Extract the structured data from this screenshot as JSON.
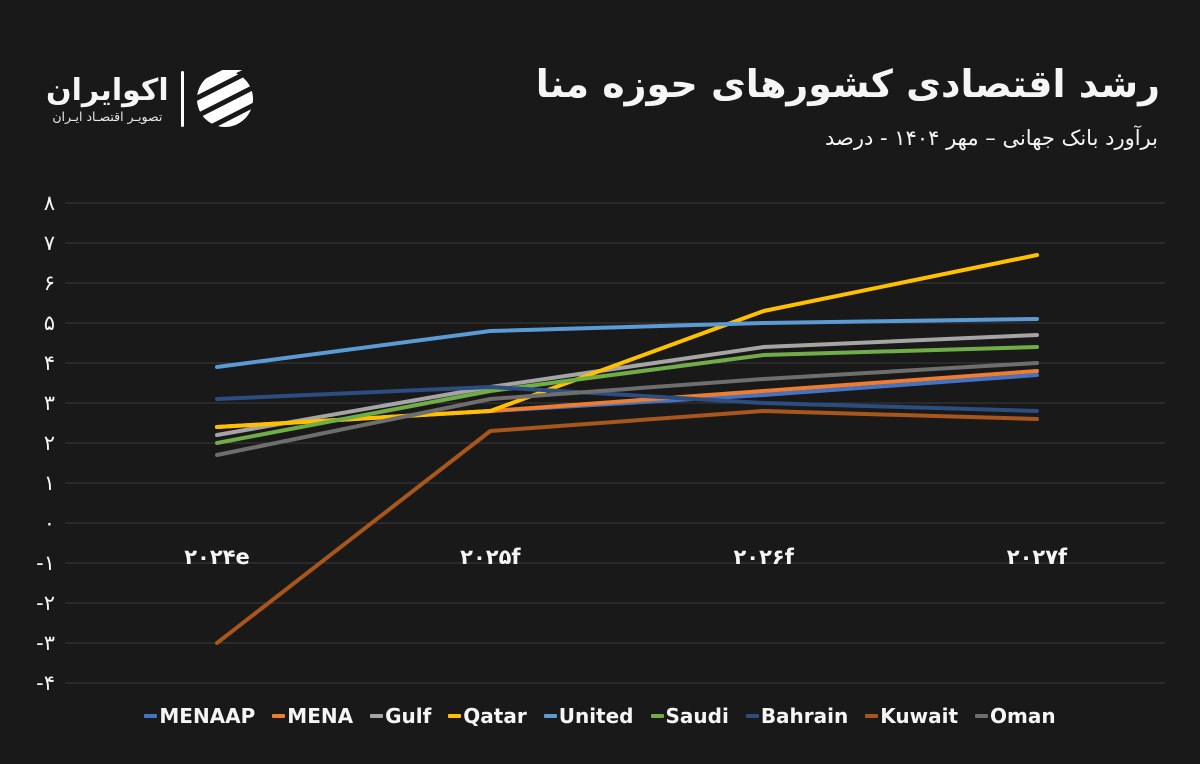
{
  "brand": {
    "name": "اکوایران",
    "tagline": "تصویـر اقتصـاد ایـران",
    "logo_icon": "ecoiran-striped-globe"
  },
  "header": {
    "title": "رشد اقتصادی کشورهای حوزه منا",
    "subtitle": "برآورد بانک جهانی – مهر ۱۴۰۴ - درصد"
  },
  "colors": {
    "background": "#191919",
    "gridline": "#3a3a3a",
    "text": "#f5f5f5"
  },
  "chart_data": {
    "type": "line",
    "title": "رشد اقتصادی کشورهای حوزه منا",
    "subtitle": "برآورد بانک جهانی – مهر ۱۴۰۴ - درصد",
    "xlabel": "",
    "ylabel": "",
    "ylim": [
      -4,
      8
    ],
    "grid": "horizontal",
    "legend_position": "bottom",
    "categories": [
      "۲۰۲۴e",
      "۲۰۲۵f",
      "۲۰۲۶f",
      "۲۰۲۷f"
    ],
    "y_ticks": {
      "values": [
        8,
        7,
        6,
        5,
        4,
        3,
        2,
        1,
        0,
        -1,
        -2,
        -3,
        -4
      ],
      "labels": [
        "۸",
        "۷",
        "۶",
        "۵",
        "۴",
        "۳",
        "۲",
        "۱",
        "۰",
        "-۱",
        "-۲",
        "-۳",
        "-۴"
      ]
    },
    "series": [
      {
        "name": "MENAAP",
        "color": "#4472C4",
        "values": [
          2.4,
          2.8,
          3.2,
          3.7
        ]
      },
      {
        "name": "MENA",
        "color": "#ED7D31",
        "values": [
          2.4,
          2.8,
          3.3,
          3.8
        ]
      },
      {
        "name": "Gulf",
        "color": "#A5A5A5",
        "values": [
          2.2,
          3.4,
          4.4,
          4.7
        ]
      },
      {
        "name": "Qatar",
        "color": "#FFC000",
        "values": [
          2.4,
          2.8,
          5.3,
          6.7
        ]
      },
      {
        "name": "United",
        "color": "#5B9BD5",
        "values": [
          3.9,
          4.8,
          5.0,
          5.1
        ]
      },
      {
        "name": "Saudi",
        "color": "#70AD47",
        "values": [
          2.0,
          3.3,
          4.2,
          4.4
        ]
      },
      {
        "name": "Bahrain",
        "color": "#2B4D80",
        "values": [
          3.1,
          3.4,
          3.0,
          2.8
        ]
      },
      {
        "name": "Kuwait",
        "color": "#A8561C",
        "values": [
          -3.0,
          2.3,
          2.8,
          2.6
        ]
      },
      {
        "name": "Oman",
        "color": "#6E6E6E",
        "values": [
          1.7,
          3.1,
          3.6,
          4.0
        ]
      }
    ]
  }
}
